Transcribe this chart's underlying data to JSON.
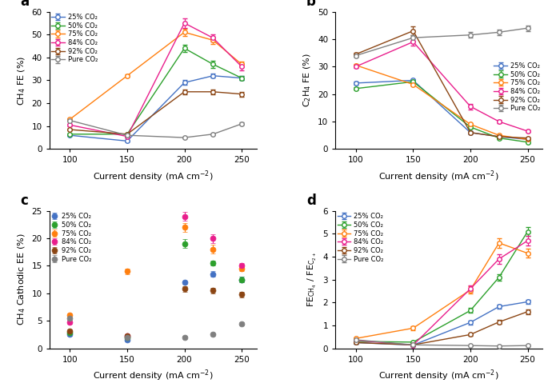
{
  "x": [
    100,
    150,
    200,
    225,
    250
  ],
  "colors": {
    "25%": "#4472c4",
    "50%": "#2ca02c",
    "75%": "#ff7f0e",
    "84%": "#e91e8c",
    "92%": "#8b4513",
    "Pure": "#808080"
  },
  "panel_a": {
    "title": "a",
    "ylabel": "CH$_4$ FE (%)",
    "xlabel": "Current density (mA cm$^{-2}$)",
    "ylim": [
      0,
      60
    ],
    "yticks": [
      0,
      10,
      20,
      30,
      40,
      50,
      60
    ],
    "legend_loc": "upper left",
    "data": {
      "25%": {
        "y": [
          6.0,
          3.5,
          29.0,
          32.0,
          31.0
        ],
        "yerr": [
          0.3,
          0.3,
          1.0,
          0.8,
          0.8
        ]
      },
      "50%": {
        "y": [
          6.5,
          6.5,
          44.0,
          37.0,
          31.0
        ],
        "yerr": [
          0.3,
          0.3,
          1.5,
          1.5,
          1.0
        ]
      },
      "75%": {
        "y": [
          13.0,
          32.0,
          51.0,
          47.5,
          37.0
        ],
        "yerr": [
          0.5,
          0.5,
          1.5,
          1.5,
          1.2
        ]
      },
      "84%": {
        "y": [
          10.5,
          5.5,
          55.0,
          48.5,
          36.0
        ],
        "yerr": [
          0.5,
          0.3,
          2.0,
          1.5,
          1.5
        ]
      },
      "92%": {
        "y": [
          8.5,
          6.5,
          25.0,
          25.0,
          24.0
        ],
        "yerr": [
          0.5,
          0.3,
          1.0,
          1.0,
          1.0
        ]
      },
      "Pure": {
        "y": [
          12.5,
          6.0,
          5.0,
          6.5,
          11.0
        ],
        "yerr": [
          0.5,
          0.3,
          0.3,
          0.3,
          0.5
        ]
      }
    }
  },
  "panel_b": {
    "title": "b",
    "ylabel": "C$_2$H$_4$ FE (%)",
    "xlabel": "Current density (mA cm$^{-2}$)",
    "ylim": [
      0,
      50
    ],
    "yticks": [
      0,
      10,
      20,
      30,
      40,
      50
    ],
    "legend_loc": "center right",
    "data": {
      "25%": {
        "y": [
          24.0,
          25.0,
          6.0,
          4.5,
          3.5
        ],
        "yerr": [
          0.5,
          0.5,
          0.5,
          0.3,
          0.3
        ]
      },
      "50%": {
        "y": [
          22.0,
          24.5,
          8.0,
          4.0,
          2.5
        ],
        "yerr": [
          0.5,
          0.5,
          0.5,
          0.3,
          0.3
        ]
      },
      "75%": {
        "y": [
          30.5,
          23.5,
          9.0,
          5.0,
          3.5
        ],
        "yerr": [
          0.5,
          0.5,
          0.5,
          0.3,
          0.3
        ]
      },
      "84%": {
        "y": [
          30.0,
          39.0,
          15.5,
          10.0,
          6.5
        ],
        "yerr": [
          0.5,
          1.5,
          1.0,
          0.5,
          0.3
        ]
      },
      "92%": {
        "y": [
          34.5,
          43.0,
          6.0,
          4.5,
          4.0
        ],
        "yerr": [
          0.5,
          1.5,
          0.5,
          0.3,
          0.3
        ]
      },
      "Pure": {
        "y": [
          34.0,
          40.5,
          41.5,
          42.5,
          44.0
        ],
        "yerr": [
          0.5,
          1.0,
          1.0,
          1.0,
          1.0
        ]
      }
    }
  },
  "panel_c": {
    "title": "c",
    "ylabel": "CH$_4$ Cathodic EE (%)",
    "xlabel": "Current density (mA cm$^{-2}$)",
    "ylim": [
      0,
      25
    ],
    "yticks": [
      0,
      5,
      10,
      15,
      20,
      25
    ],
    "legend_loc": "upper left",
    "data": {
      "25%": {
        "y": [
          2.5,
          1.5,
          12.0,
          13.5,
          12.5
        ],
        "yerr": [
          0.2,
          0.2,
          0.3,
          0.5,
          0.5
        ]
      },
      "50%": {
        "y": [
          2.8,
          2.0,
          19.0,
          15.5,
          12.5
        ],
        "yerr": [
          0.2,
          0.2,
          0.8,
          0.5,
          0.5
        ]
      },
      "75%": {
        "y": [
          6.0,
          14.0,
          22.0,
          18.0,
          14.5
        ],
        "yerr": [
          0.3,
          0.5,
          0.8,
          0.8,
          0.5
        ]
      },
      "84%": {
        "y": [
          4.8,
          2.2,
          24.0,
          20.0,
          15.0
        ],
        "yerr": [
          0.3,
          0.3,
          0.8,
          0.8,
          0.5
        ]
      },
      "92%": {
        "y": [
          3.2,
          2.3,
          10.8,
          10.5,
          9.8
        ],
        "yerr": [
          0.2,
          0.3,
          0.5,
          0.5,
          0.5
        ]
      },
      "Pure": {
        "y": [
          5.5,
          2.0,
          2.0,
          2.5,
          4.5
        ],
        "yerr": [
          0.3,
          0.3,
          0.2,
          0.2,
          0.3
        ]
      }
    }
  },
  "panel_d": {
    "title": "d",
    "ylabel": "FE$_{\\mathrm{CH_4}}$ / FE$_{\\mathrm{C_{2+}}}$",
    "xlabel": "Current density (mA cm$^{-2}$)",
    "ylim": [
      0,
      6
    ],
    "yticks": [
      0,
      1,
      2,
      3,
      4,
      5,
      6
    ],
    "legend_loc": "upper left",
    "data": {
      "25%": {
        "y": [
          0.25,
          0.14,
          1.13,
          1.82,
          2.03
        ],
        "yerr": [
          0.05,
          0.03,
          0.08,
          0.1,
          0.1
        ]
      },
      "50%": {
        "y": [
          0.3,
          0.27,
          1.65,
          3.1,
          5.1
        ],
        "yerr": [
          0.05,
          0.03,
          0.1,
          0.15,
          0.2
        ]
      },
      "75%": {
        "y": [
          0.43,
          0.88,
          2.55,
          4.6,
          4.15
        ],
        "yerr": [
          0.05,
          0.08,
          0.15,
          0.2,
          0.2
        ]
      },
      "84%": {
        "y": [
          0.35,
          0.14,
          2.6,
          3.9,
          4.7
        ],
        "yerr": [
          0.05,
          0.03,
          0.15,
          0.2,
          0.2
        ]
      },
      "92%": {
        "y": [
          0.25,
          0.15,
          0.6,
          1.15,
          1.6
        ],
        "yerr": [
          0.05,
          0.03,
          0.05,
          0.08,
          0.1
        ]
      },
      "Pure": {
        "y": [
          0.37,
          0.15,
          0.12,
          0.1,
          0.12
        ],
        "yerr": [
          0.05,
          0.03,
          0.02,
          0.02,
          0.02
        ]
      }
    }
  },
  "legend_labels": [
    "25% CO₂",
    "50% CO₂",
    "75% CO₂",
    "84% CO₂",
    "92% CO₂",
    "Pure CO₂"
  ],
  "series_keys": [
    "25%",
    "50%",
    "75%",
    "84%",
    "92%",
    "Pure"
  ]
}
